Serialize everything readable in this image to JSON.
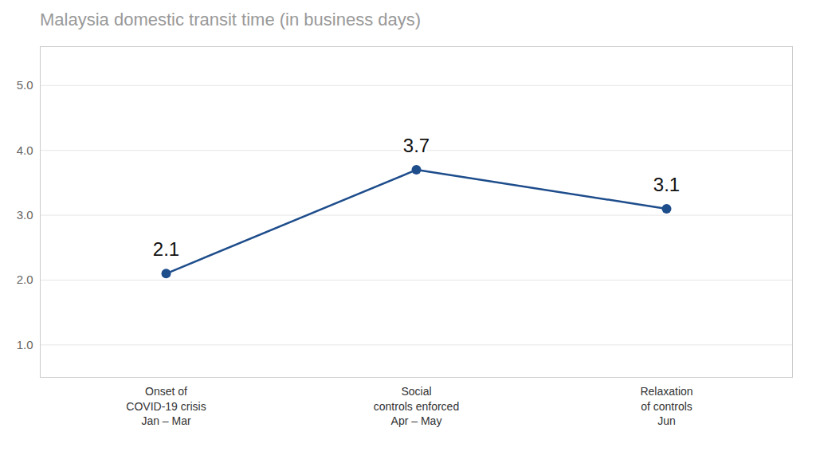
{
  "chart_data": {
    "type": "line",
    "title": "Malaysia domestic transit time (in business days)",
    "categories": [
      "Onset of\nCOVID-19 crisis\nJan – Mar",
      "Social\ncontrols enforced\nApr – May",
      "Relaxation\nof controls\nJun"
    ],
    "values": [
      2.1,
      3.7,
      3.1
    ],
    "color": "#1e4d8c",
    "marker": "circle",
    "ylim": [
      0.5,
      5.6
    ],
    "yticks": [
      1,
      2,
      3,
      4,
      5
    ],
    "grid": true,
    "data_labels": true
  }
}
